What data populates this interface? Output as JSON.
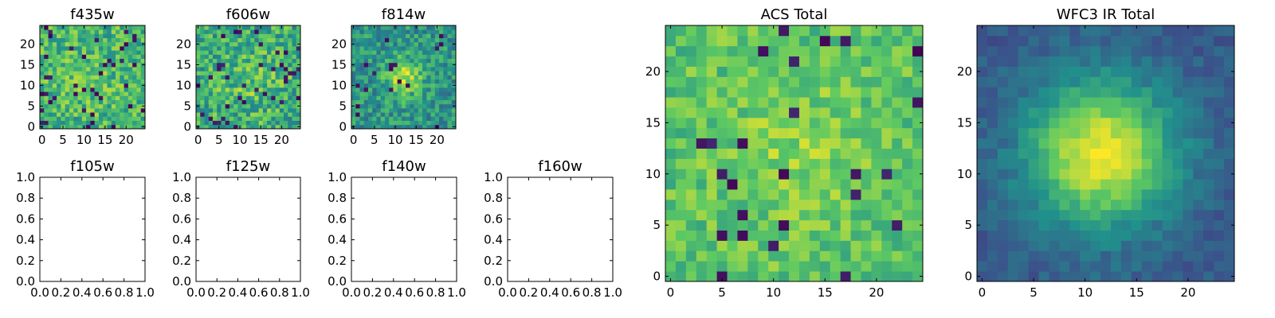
{
  "figure": {
    "colormap": "viridis",
    "colormap_stops": [
      "#440154",
      "#3b528b",
      "#21918c",
      "#5ec962",
      "#fde725"
    ]
  },
  "chart_data": [
    {
      "id": "p-f435w",
      "type": "heatmap",
      "title": "f435w",
      "size": 25,
      "xlim": [
        -0.5,
        24.5
      ],
      "ylim": [
        -0.5,
        24.5
      ],
      "xticks": [
        0,
        5,
        10,
        15,
        20
      ],
      "yticks": [
        0,
        5,
        10,
        15,
        20
      ],
      "xticklabels": [
        "0",
        "5",
        "10",
        "15",
        "20"
      ],
      "yticklabels": [
        "0",
        "5",
        "10",
        "15",
        "20"
      ],
      "pattern": {
        "base": 0.66,
        "peak": 0.06,
        "cx": 11,
        "cy": 11,
        "sigma": 5,
        "noise": 0.2,
        "dips": 0.06,
        "seed": 11
      }
    },
    {
      "id": "p-f606w",
      "type": "heatmap",
      "title": "f606w",
      "size": 25,
      "xlim": [
        -0.5,
        24.5
      ],
      "ylim": [
        -0.5,
        24.5
      ],
      "xticks": [
        0,
        5,
        10,
        15,
        20
      ],
      "yticks": [
        0,
        5,
        10,
        15,
        20
      ],
      "xticklabels": [
        "0",
        "5",
        "10",
        "15",
        "20"
      ],
      "yticklabels": [
        "0",
        "5",
        "10",
        "15",
        "20"
      ],
      "pattern": {
        "base": 0.62,
        "peak": 0.1,
        "cx": 12,
        "cy": 11,
        "sigma": 5,
        "noise": 0.22,
        "dips": 0.05,
        "seed": 23
      }
    },
    {
      "id": "p-f814w",
      "type": "heatmap",
      "title": "f814w",
      "size": 25,
      "xlim": [
        -0.5,
        24.5
      ],
      "ylim": [
        -0.5,
        24.5
      ],
      "xticks": [
        0,
        5,
        10,
        15,
        20
      ],
      "yticks": [
        0,
        5,
        10,
        15,
        20
      ],
      "xticklabels": [
        "0",
        "5",
        "10",
        "15",
        "20"
      ],
      "yticklabels": [
        "0",
        "5",
        "10",
        "15",
        "20"
      ],
      "pattern": {
        "base": 0.52,
        "peak": 0.38,
        "cx": 12,
        "cy": 12,
        "sigma": 3,
        "noise": 0.18,
        "dips": 0.03,
        "seed": 37
      }
    },
    {
      "id": "p-f105w",
      "type": "empty",
      "title": "f105w",
      "xlim": [
        0,
        1
      ],
      "ylim": [
        0,
        1
      ],
      "xticks": [
        0,
        0.2,
        0.4,
        0.6,
        0.8,
        1.0
      ],
      "yticks": [
        0,
        0.2,
        0.4,
        0.6,
        0.8,
        1.0
      ],
      "xticklabels": [
        "0.0",
        "0.2",
        "0.4",
        "0.6",
        "0.8",
        "1.0"
      ],
      "yticklabels": [
        "0.0",
        "0.2",
        "0.4",
        "0.6",
        "0.8",
        "1.0"
      ]
    },
    {
      "id": "p-f125w",
      "type": "empty",
      "title": "f125w",
      "xlim": [
        0,
        1
      ],
      "ylim": [
        0,
        1
      ],
      "xticks": [
        0,
        0.2,
        0.4,
        0.6,
        0.8,
        1.0
      ],
      "yticks": [
        0,
        0.2,
        0.4,
        0.6,
        0.8,
        1.0
      ],
      "xticklabels": [
        "0.0",
        "0.2",
        "0.4",
        "0.6",
        "0.8",
        "1.0"
      ],
      "yticklabels": [
        "0.0",
        "0.2",
        "0.4",
        "0.6",
        "0.8",
        "1.0"
      ]
    },
    {
      "id": "p-f140w",
      "type": "empty",
      "title": "f140w",
      "xlim": [
        0,
        1
      ],
      "ylim": [
        0,
        1
      ],
      "xticks": [
        0,
        0.2,
        0.4,
        0.6,
        0.8,
        1.0
      ],
      "yticks": [
        0,
        0.2,
        0.4,
        0.6,
        0.8,
        1.0
      ],
      "xticklabels": [
        "0.0",
        "0.2",
        "0.4",
        "0.6",
        "0.8",
        "1.0"
      ],
      "yticklabels": [
        "0.0",
        "0.2",
        "0.4",
        "0.6",
        "0.8",
        "1.0"
      ]
    },
    {
      "id": "p-f160w",
      "type": "empty",
      "title": "f160w",
      "xlim": [
        0,
        1
      ],
      "ylim": [
        0,
        1
      ],
      "xticks": [
        0,
        0.2,
        0.4,
        0.6,
        0.8,
        1.0
      ],
      "yticks": [
        0,
        0.2,
        0.4,
        0.6,
        0.8,
        1.0
      ],
      "xticklabels": [
        "0.0",
        "0.2",
        "0.4",
        "0.6",
        "0.8",
        "1.0"
      ],
      "yticklabels": [
        "0.0",
        "0.2",
        "0.4",
        "0.6",
        "0.8",
        "1.0"
      ]
    },
    {
      "id": "p-acs",
      "type": "heatmap",
      "title": "ACS Total",
      "size": 25,
      "xlim": [
        -0.5,
        24.5
      ],
      "ylim": [
        -0.5,
        24.5
      ],
      "xticks": [
        0,
        5,
        10,
        15,
        20
      ],
      "yticks": [
        0,
        5,
        10,
        15,
        20
      ],
      "xticklabels": [
        "0",
        "5",
        "10",
        "15",
        "20"
      ],
      "yticklabels": [
        "0",
        "5",
        "10",
        "15",
        "20"
      ],
      "pattern": {
        "base": 0.72,
        "peak": 0.1,
        "cx": 13,
        "cy": 12,
        "sigma": 5,
        "noise": 0.14,
        "dips": 0.05,
        "seed": 53
      }
    },
    {
      "id": "p-wfc3",
      "type": "heatmap",
      "title": "WFC3 IR Total",
      "size": 25,
      "xlim": [
        -0.5,
        24.5
      ],
      "ylim": [
        -0.5,
        24.5
      ],
      "xticks": [
        0,
        5,
        10,
        15,
        20
      ],
      "yticks": [
        0,
        5,
        10,
        15,
        20
      ],
      "xticklabels": [
        "0",
        "5",
        "10",
        "15",
        "20"
      ],
      "yticklabels": [
        "0",
        "5",
        "10",
        "15",
        "20"
      ],
      "pattern": {
        "base": 0.28,
        "peak": 0.7,
        "cx": 11.5,
        "cy": 12,
        "sigma": 5,
        "noise": 0.07,
        "dips": 0.0,
        "seed": 71
      }
    }
  ]
}
